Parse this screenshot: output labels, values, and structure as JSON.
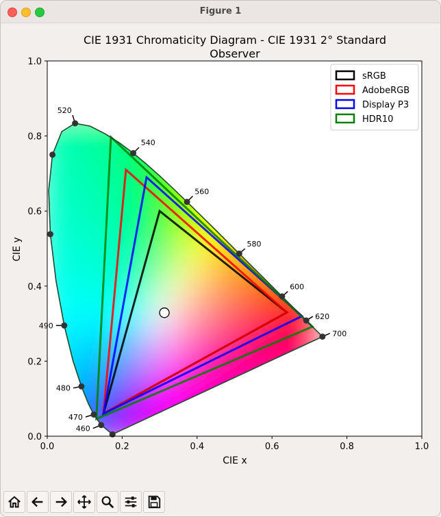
{
  "window": {
    "title": "Figure 1"
  },
  "toolbar": {
    "buttons": [
      {
        "name": "home-button",
        "icon": "home-icon"
      },
      {
        "name": "back-button",
        "icon": "arrow-left-icon"
      },
      {
        "name": "forward-button",
        "icon": "arrow-right-icon"
      },
      {
        "name": "pan-button",
        "icon": "move-icon"
      },
      {
        "name": "zoom-button",
        "icon": "magnifier-icon"
      },
      {
        "name": "configure-subplots-button",
        "icon": "sliders-icon"
      },
      {
        "name": "save-button",
        "icon": "floppy-disk-icon"
      }
    ]
  },
  "chart_data": {
    "type": "line",
    "title_line1": "CIE 1931 Chromaticity Diagram - CIE 1931 2° Standard",
    "title_line2": "Observer",
    "xlabel": "CIE x",
    "ylabel": "CIE y",
    "xlim": [
      0.0,
      1.0
    ],
    "ylim": [
      0.0,
      1.0
    ],
    "x_ticks": [
      "0.0",
      "0.2",
      "0.4",
      "0.6",
      "0.8",
      "1.0"
    ],
    "y_ticks": [
      "0.0",
      "0.2",
      "0.4",
      "0.6",
      "0.8",
      "1.0"
    ],
    "legend_position": "top-right",
    "spectral_locus": [
      [
        0.1741,
        0.005
      ],
      [
        0.144,
        0.0297
      ],
      [
        0.1241,
        0.0578
      ],
      [
        0.1096,
        0.0868
      ],
      [
        0.0913,
        0.1327
      ],
      [
        0.0687,
        0.2007
      ],
      [
        0.0454,
        0.295
      ],
      [
        0.0235,
        0.4127
      ],
      [
        0.0082,
        0.5384
      ],
      [
        0.0039,
        0.6548
      ],
      [
        0.0139,
        0.7502
      ],
      [
        0.0389,
        0.812
      ],
      [
        0.0743,
        0.8338
      ],
      [
        0.1142,
        0.8262
      ],
      [
        0.1547,
        0.8059
      ],
      [
        0.1929,
        0.7816
      ],
      [
        0.2296,
        0.7543
      ],
      [
        0.2658,
        0.7243
      ],
      [
        0.3016,
        0.6923
      ],
      [
        0.3373,
        0.6589
      ],
      [
        0.3731,
        0.6245
      ],
      [
        0.4087,
        0.5896
      ],
      [
        0.4441,
        0.5547
      ],
      [
        0.4788,
        0.5202
      ],
      [
        0.5125,
        0.4866
      ],
      [
        0.5448,
        0.4544
      ],
      [
        0.5752,
        0.4242
      ],
      [
        0.6029,
        0.3965
      ],
      [
        0.627,
        0.3725
      ],
      [
        0.6482,
        0.3514
      ],
      [
        0.6658,
        0.334
      ],
      [
        0.6801,
        0.3197
      ],
      [
        0.6915,
        0.3083
      ],
      [
        0.7006,
        0.2993
      ],
      [
        0.7079,
        0.292
      ],
      [
        0.714,
        0.2859
      ],
      [
        0.719,
        0.2809
      ],
      [
        0.723,
        0.277
      ],
      [
        0.726,
        0.274
      ],
      [
        0.7283,
        0.2717
      ],
      [
        0.73,
        0.27
      ],
      [
        0.7347,
        0.2653
      ]
    ],
    "wavelength_markers": [
      {
        "label": "460",
        "x": 0.144,
        "y": 0.0297
      },
      {
        "label": "470",
        "x": 0.1241,
        "y": 0.0578
      },
      {
        "label": "480",
        "x": 0.0913,
        "y": 0.1327
      },
      {
        "label": "490",
        "x": 0.0454,
        "y": 0.295
      },
      {
        "label": "",
        "x": 0.0082,
        "y": 0.5384
      },
      {
        "label": "",
        "x": 0.0139,
        "y": 0.7502
      },
      {
        "label": "520",
        "x": 0.0743,
        "y": 0.8338
      },
      {
        "label": "540",
        "x": 0.2296,
        "y": 0.7543
      },
      {
        "label": "560",
        "x": 0.3731,
        "y": 0.6245
      },
      {
        "label": "580",
        "x": 0.5125,
        "y": 0.4866
      },
      {
        "label": "600",
        "x": 0.627,
        "y": 0.3725
      },
      {
        "label": "620",
        "x": 0.6915,
        "y": 0.3083
      },
      {
        "label": "700",
        "x": 0.7347,
        "y": 0.2653
      },
      {
        "label": "",
        "x": 0.1741,
        "y": 0.005
      }
    ],
    "series": [
      {
        "name": "sRGB",
        "color": "#000000",
        "points": [
          [
            0.64,
            0.33
          ],
          [
            0.3,
            0.6
          ],
          [
            0.15,
            0.06
          ]
        ]
      },
      {
        "name": "AdobeRGB",
        "color": "#ff0000",
        "points": [
          [
            0.64,
            0.33
          ],
          [
            0.21,
            0.71
          ],
          [
            0.15,
            0.06
          ]
        ]
      },
      {
        "name": "Display P3",
        "color": "#0000ff",
        "points": [
          [
            0.68,
            0.32
          ],
          [
            0.265,
            0.69
          ],
          [
            0.15,
            0.06
          ]
        ]
      },
      {
        "name": "HDR10",
        "color": "#008000",
        "points": [
          [
            0.708,
            0.292
          ],
          [
            0.17,
            0.797
          ],
          [
            0.131,
            0.046
          ]
        ]
      }
    ],
    "white_point": {
      "x": 0.3127,
      "y": 0.329
    }
  }
}
